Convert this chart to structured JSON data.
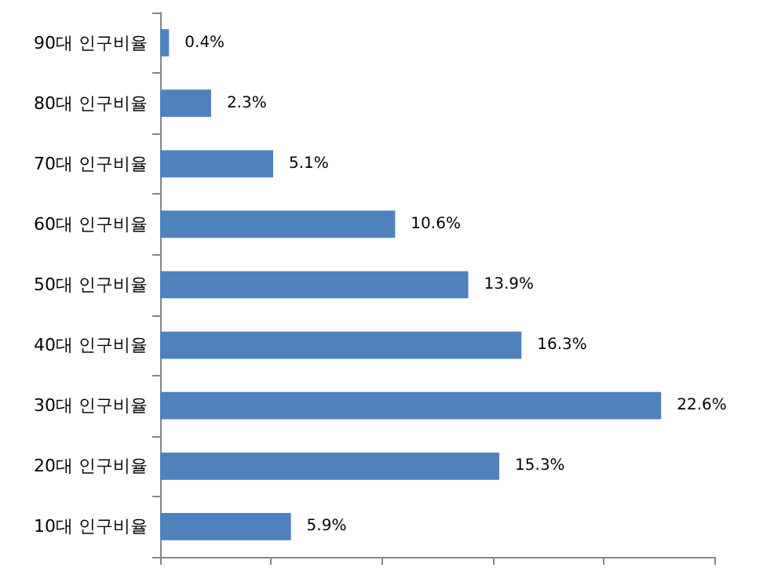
{
  "chart_data": {
    "type": "bar",
    "orientation": "horizontal",
    "categories": [
      "90대 인구비율",
      "80대 인구비율",
      "70대 인구비율",
      "60대 인구비율",
      "50대 인구비율",
      "40대 인구비율",
      "30대 인구비율",
      "20대 인구비율",
      "10대 인구비율"
    ],
    "values": [
      0.4,
      2.3,
      5.1,
      10.6,
      13.9,
      16.3,
      22.6,
      15.3,
      5.9
    ],
    "value_labels": [
      "0.4%",
      "2.3%",
      "5.1%",
      "10.6%",
      "13.9%",
      "16.3%",
      "22.6%",
      "15.3%",
      "5.9%"
    ],
    "color": "#4f81bd",
    "xlim": [
      0,
      25
    ],
    "xticks": [
      {
        "value": 0,
        "label": null
      },
      {
        "value": 5,
        "label": null
      },
      {
        "value": 10,
        "label": null
      },
      {
        "value": 15,
        "label": null
      },
      {
        "value": 20,
        "label": null
      },
      {
        "value": 25,
        "label": null
      }
    ],
    "tick_labels": "y",
    "grid": false
  }
}
